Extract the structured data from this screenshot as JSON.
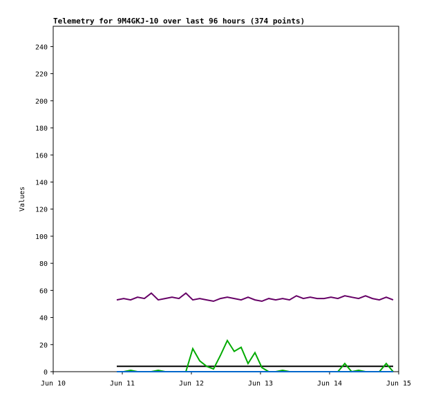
{
  "chart_data": {
    "type": "line",
    "title": "Telemetry for 9M4GKJ-10 over last 96 hours (374 points)",
    "y_label": "Values",
    "xlim": [
      10,
      15
    ],
    "xticks": [
      {
        "value": 10,
        "label": "Jun 10"
      },
      {
        "value": 11,
        "label": "Jun 11"
      },
      {
        "value": 12,
        "label": "Jun 12"
      },
      {
        "value": 13,
        "label": "Jun 13"
      },
      {
        "value": 14,
        "label": "Jun 14"
      },
      {
        "value": 15,
        "label": "Jun 15"
      }
    ],
    "ylim": [
      0,
      255
    ],
    "yticks": [
      0,
      20,
      40,
      60,
      80,
      100,
      120,
      140,
      160,
      180,
      200,
      220,
      240
    ],
    "x": [
      10.92,
      11.02,
      11.12,
      11.22,
      11.32,
      11.42,
      11.52,
      11.62,
      11.72,
      11.82,
      11.92,
      12.02,
      12.12,
      12.22,
      12.32,
      12.42,
      12.52,
      12.62,
      12.72,
      12.82,
      12.92,
      13.02,
      13.12,
      13.22,
      13.32,
      13.42,
      13.52,
      13.62,
      13.72,
      13.82,
      13.92,
      14.02,
      14.12,
      14.22,
      14.32,
      14.42,
      14.52,
      14.62,
      14.72,
      14.82,
      14.92
    ],
    "series": [
      {
        "color": "#660066",
        "values": [
          53,
          54,
          53,
          55,
          54,
          58,
          53,
          54,
          55,
          54,
          58,
          53,
          54,
          53,
          52,
          54,
          55,
          54,
          53,
          55,
          53,
          52,
          54,
          53,
          54,
          53,
          56,
          54,
          55,
          54,
          54,
          55,
          54,
          56,
          55,
          54,
          56,
          54,
          53,
          55,
          53
        ]
      },
      {
        "color": "#000000",
        "values": [
          4,
          4,
          4,
          4,
          4,
          4,
          4,
          4,
          4,
          4,
          4,
          4,
          4,
          4,
          4,
          4,
          4,
          4,
          4,
          4,
          4,
          4,
          4,
          4,
          4,
          4,
          4,
          4,
          4,
          4,
          4,
          4,
          4,
          4,
          4,
          4,
          4,
          4,
          4,
          4,
          4
        ]
      },
      {
        "color": "#00aa00",
        "values": [
          0,
          0,
          1,
          0,
          0,
          0,
          1,
          0,
          0,
          0,
          0,
          17,
          8,
          4,
          2,
          12,
          23,
          15,
          18,
          6,
          14,
          3,
          0,
          0,
          1,
          0,
          0,
          0,
          0,
          0,
          0,
          0,
          0,
          6,
          0,
          1,
          0,
          0,
          0,
          6,
          0
        ]
      },
      {
        "color": "#0066cc",
        "values": [
          0,
          0,
          0,
          0,
          0,
          0,
          0,
          0,
          0,
          0,
          0,
          0,
          0,
          0,
          0,
          0,
          0,
          0,
          0,
          0,
          0,
          0,
          0,
          0,
          0,
          0,
          0,
          0,
          0,
          0,
          0,
          0,
          0,
          0,
          0,
          0,
          0,
          0,
          0,
          0,
          0
        ]
      }
    ]
  }
}
